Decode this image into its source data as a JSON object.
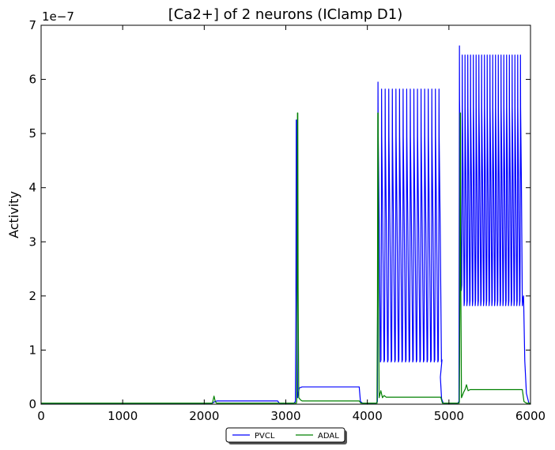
{
  "chart_data": {
    "type": "line",
    "title": "[Ca2+] of 2 neurons (IClamp D1)",
    "xlabel": "",
    "ylabel": "Activity",
    "y_offset_label": "1e−7",
    "xlim": [
      0,
      6000
    ],
    "ylim": [
      0,
      7
    ],
    "x_ticks": [
      0,
      1000,
      2000,
      3000,
      4000,
      5000,
      6000
    ],
    "y_ticks": [
      0,
      1,
      2,
      3,
      4,
      5,
      6,
      7
    ],
    "grid": false,
    "legend_position": "bottom-center",
    "series": [
      {
        "name": "PVCL",
        "color": "#0000ff",
        "segments": [
          {
            "points": [
              [
                0,
                0.02
              ],
              [
                2100,
                0.02
              ],
              [
                2130,
                0.05
              ],
              [
                2160,
                0.06
              ],
              [
                2900,
                0.06
              ],
              [
                2920,
                0.02
              ],
              [
                3100,
                0.02
              ]
            ]
          },
          {
            "spike": true,
            "x": 3130,
            "peak": 5.25
          },
          {
            "points": [
              [
                3165,
                0.3
              ],
              [
                3200,
                0.32
              ],
              [
                3900,
                0.32
              ],
              [
                3915,
                0.05
              ],
              [
                3940,
                0.02
              ],
              [
                4110,
                0.02
              ]
            ]
          },
          {
            "burst": true,
            "start": 4125,
            "end": 4895,
            "period": 44,
            "first_peak": 5.95,
            "peak": 5.82,
            "trough": 0.78
          },
          {
            "points": [
              [
                4895,
                0.5
              ],
              [
                4910,
                0.1
              ],
              [
                4930,
                0.02
              ],
              [
                5110,
                0.02
              ]
            ]
          },
          {
            "burst": true,
            "start": 5125,
            "end": 5915,
            "period": 34,
            "first_peak": 6.62,
            "peak": 6.45,
            "trough": 1.82,
            "second_trough": 2.1
          },
          {
            "points": [
              [
                5915,
                2.0
              ],
              [
                5930,
                0.8
              ],
              [
                5950,
                0.2
              ],
              [
                5980,
                0.02
              ],
              [
                6000,
                0.02
              ]
            ]
          }
        ]
      },
      {
        "name": "ADAL",
        "color": "#008000",
        "segments": [
          {
            "points": [
              [
                0,
                0.02
              ],
              [
                2100,
                0.02
              ],
              [
                2120,
                0.15
              ],
              [
                2135,
                0.05
              ],
              [
                2150,
                0.02
              ],
              [
                3130,
                0.02
              ]
            ]
          },
          {
            "spike": true,
            "x": 3145,
            "peak": 5.38
          },
          {
            "points": [
              [
                3180,
                0.08
              ],
              [
                3200,
                0.06
              ],
              [
                3900,
                0.06
              ],
              [
                3920,
                0.02
              ],
              [
                4120,
                0.02
              ]
            ]
          },
          {
            "spike": true,
            "x": 4130,
            "peak": 5.38
          },
          {
            "points": [
              [
                4165,
                0.25
              ],
              [
                4185,
                0.12
              ],
              [
                4205,
                0.16
              ],
              [
                4230,
                0.13
              ],
              [
                4900,
                0.13
              ],
              [
                4920,
                0.02
              ],
              [
                5125,
                0.02
              ]
            ]
          },
          {
            "spike": true,
            "x": 5140,
            "peak": 5.38
          },
          {
            "points": [
              [
                5180,
                0.22
              ],
              [
                5200,
                0.28
              ],
              [
                5215,
                0.36
              ],
              [
                5235,
                0.25
              ],
              [
                5260,
                0.27
              ],
              [
                5900,
                0.27
              ],
              [
                5920,
                0.05
              ],
              [
                5950,
                0.02
              ],
              [
                6000,
                0.02
              ]
            ]
          }
        ]
      }
    ]
  }
}
